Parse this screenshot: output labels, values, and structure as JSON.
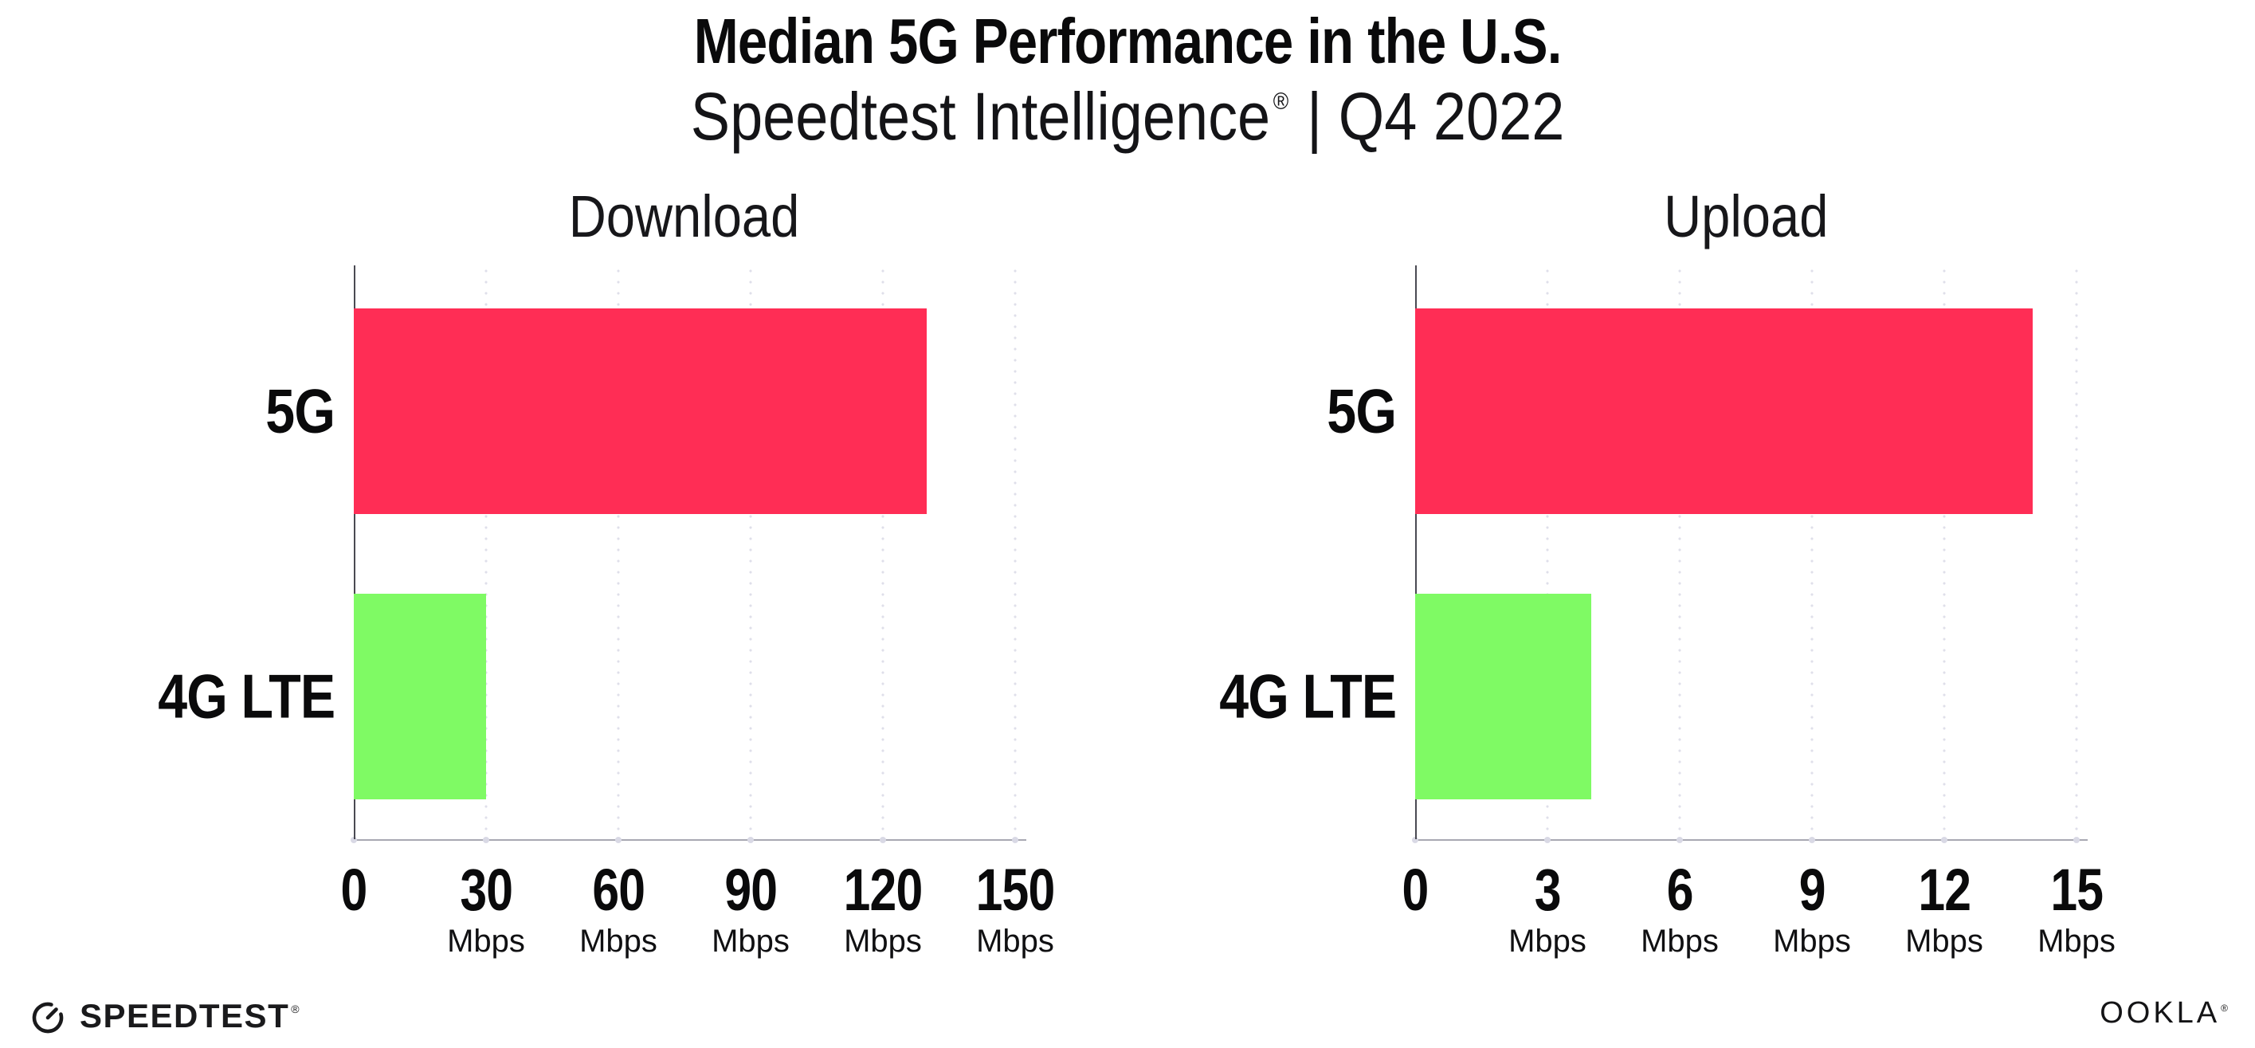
{
  "header": {
    "title": "Median 5G Performance in the U.S.",
    "subtitle_brand": "Speedtest Intelligence",
    "subtitle_mark": "®",
    "subtitle_rest": "| Q4 2022"
  },
  "chart_data": [
    {
      "type": "bar",
      "orientation": "horizontal",
      "title": "Download",
      "categories": [
        "5G",
        "4G LTE"
      ],
      "values": [
        130,
        30
      ],
      "unit": "Mbps",
      "xlim": [
        0,
        150
      ],
      "xticks": [
        0,
        30,
        60,
        90,
        120,
        150
      ],
      "bar_colors": [
        "#FF2D55",
        "#7FFA64"
      ],
      "grid": "dotted-vertical",
      "legend": "none"
    },
    {
      "type": "bar",
      "orientation": "horizontal",
      "title": "Upload",
      "categories": [
        "5G",
        "4G LTE"
      ],
      "values": [
        14,
        4
      ],
      "unit": "Mbps",
      "xlim": [
        0,
        15
      ],
      "xticks": [
        0,
        3,
        6,
        9,
        12,
        15
      ],
      "bar_colors": [
        "#FF2D55",
        "#7FFA64"
      ],
      "grid": "dotted-vertical",
      "legend": "none"
    }
  ],
  "footer": {
    "speedtest_label": "SPEEDTEST",
    "speedtest_mark": "®",
    "ookla_label": "OOKLA",
    "ookla_mark": "®"
  },
  "colors": {
    "bar_5g": "#FF2D55",
    "bar_4g_lte": "#7FFA64",
    "gridline": "#DFDFEA",
    "x_axis_line": "#A8A8B2",
    "y_axis_line": "#4A4A52",
    "text": "#0B0B0C",
    "background": "#FFFFFF"
  }
}
